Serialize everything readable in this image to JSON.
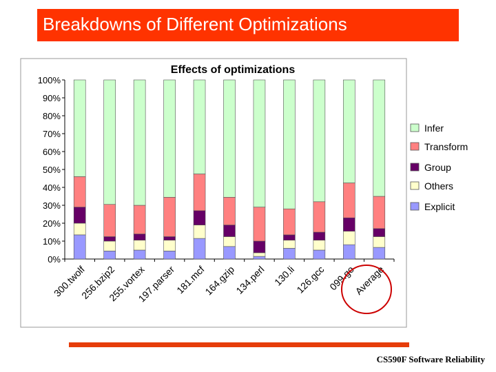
{
  "slide": {
    "title": "Breakdowns of Different Optimizations",
    "footer": "CS590F Software Reliability",
    "title_bg_color": "#ff3300",
    "footer_line_color": "#e63d0a",
    "highlight_circle_color": "#cc0000"
  },
  "chart_data": {
    "type": "bar",
    "stacked": true,
    "title": "Effects of optimizations",
    "xlabel": "",
    "ylabel": "",
    "ylim": [
      0,
      100
    ],
    "y_ticks": [
      "0%",
      "10%",
      "20%",
      "30%",
      "40%",
      "50%",
      "60%",
      "70%",
      "80%",
      "90%",
      "100%"
    ],
    "grid": false,
    "legend_position": "right",
    "highlighted_category": "Average",
    "categories": [
      "300.twolf",
      "256.bzip2",
      "255.vortex",
      "197.parser",
      "181.mcf",
      "164.gzip",
      "134.perl",
      "130.li",
      "126.gcc",
      "099.go",
      "Average"
    ],
    "series": [
      {
        "name": "Explicit",
        "color": "#9999ff",
        "values": [
          13.5,
          4.5,
          5,
          4.5,
          11.5,
          7,
          1.5,
          6,
          5,
          8,
          6.5
        ]
      },
      {
        "name": "Others",
        "color": "#ffffcc",
        "values": [
          6.5,
          5.5,
          5.5,
          6,
          7.5,
          5.5,
          2,
          4.5,
          5.5,
          7.5,
          6
        ]
      },
      {
        "name": "Group",
        "color": "#660066",
        "values": [
          9,
          2.5,
          3.5,
          2,
          8,
          6.5,
          6.5,
          3,
          4.5,
          7.5,
          4.5
        ]
      },
      {
        "name": "Transform",
        "color": "#ff8080",
        "values": [
          17,
          18,
          16,
          22,
          20.5,
          15.5,
          19,
          14.5,
          17,
          19.5,
          18
        ]
      },
      {
        "name": "Infer",
        "color": "#ccffcc",
        "values": [
          54,
          69.5,
          70,
          65.5,
          52.5,
          65.5,
          71,
          72,
          68,
          57.5,
          65
        ]
      }
    ],
    "legend_order": [
      "Infer",
      "Transform",
      "Group",
      "Others",
      "Explicit"
    ]
  }
}
